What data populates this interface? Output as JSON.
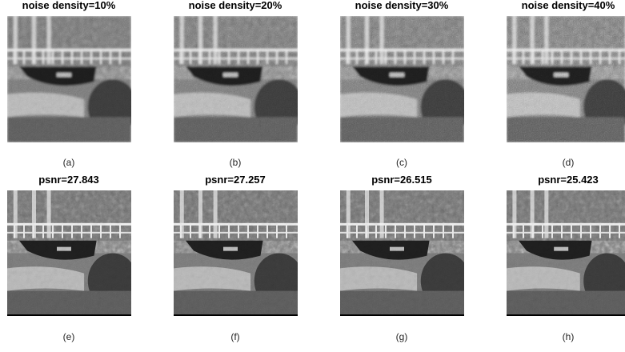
{
  "panels": [
    {
      "title": "noise density=10%",
      "caption": "(a)"
    },
    {
      "title": "noise density=20%",
      "caption": "(b)"
    },
    {
      "title": "noise density=30%",
      "caption": "(c)"
    },
    {
      "title": "noise density=40%",
      "caption": "(d)"
    },
    {
      "title": "psnr=27.843",
      "caption": "(e)"
    },
    {
      "title": "psnr=27.257",
      "caption": "(f)"
    },
    {
      "title": "psnr=26.515",
      "caption": "(g)"
    },
    {
      "title": "psnr=25.423",
      "caption": "(h)"
    }
  ]
}
